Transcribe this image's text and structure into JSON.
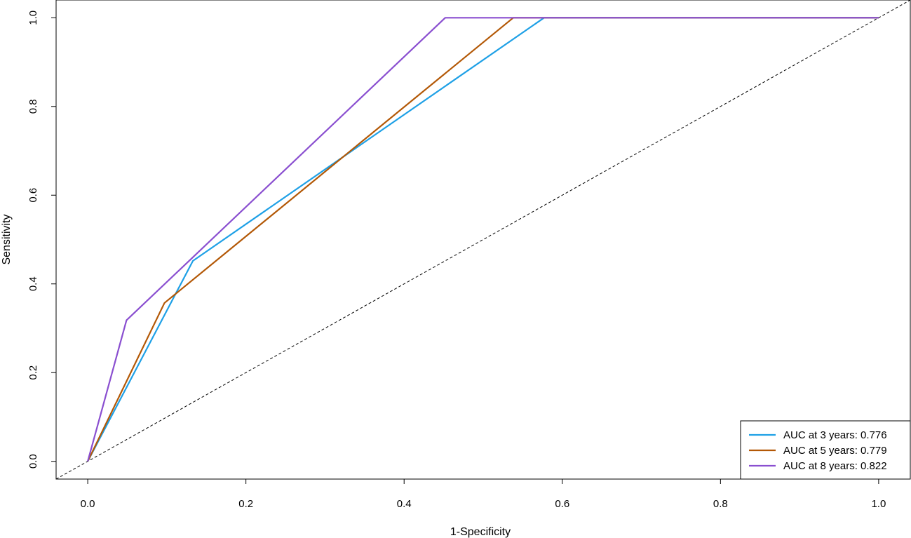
{
  "chart_data": {
    "type": "line",
    "title": "",
    "xlabel": "1-Specificity",
    "ylabel": "Sensitivity",
    "xlim": [
      -0.04,
      1.04
    ],
    "ylim": [
      -0.04,
      1.04
    ],
    "xticks": [
      "0.0",
      "0.2",
      "0.4",
      "0.6",
      "0.8",
      "1.0"
    ],
    "yticks": [
      "0.0",
      "0.2",
      "0.4",
      "0.6",
      "0.8",
      "1.0"
    ],
    "grid": false,
    "legend_position": "bottom-right",
    "reference_line": {
      "style": "dashed",
      "color": "#000000",
      "x": [
        0,
        1
      ],
      "y": [
        0,
        1
      ]
    },
    "series": [
      {
        "name": "AUC at 3 years: 0.776",
        "color": "#1ea0e6",
        "x": [
          0.0,
          0.133,
          0.577,
          1.0
        ],
        "y": [
          0.0,
          0.452,
          1.0,
          1.0
        ]
      },
      {
        "name": "AUC at 5 years: 0.779",
        "color": "#b35806",
        "x": [
          0.0,
          0.097,
          0.538,
          1.0
        ],
        "y": [
          0.0,
          0.357,
          1.0,
          1.0
        ]
      },
      {
        "name": "AUC at 8 years: 0.822",
        "color": "#8a4fd0",
        "x": [
          0.0,
          0.049,
          0.452,
          1.0
        ],
        "y": [
          0.0,
          0.318,
          1.0,
          1.0
        ]
      }
    ]
  }
}
